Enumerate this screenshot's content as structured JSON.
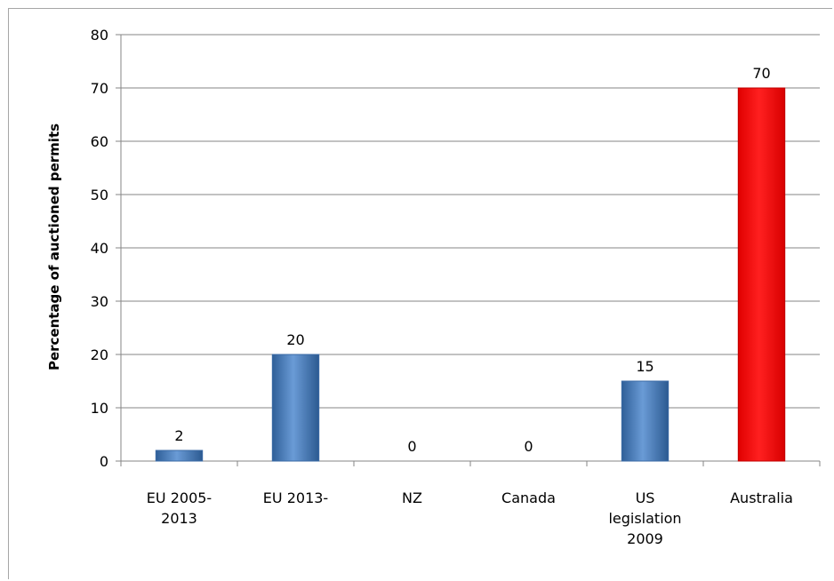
{
  "chart_data": {
    "type": "bar",
    "categories": [
      "EU 2005-\n2013",
      "EU 2013-",
      "NZ",
      "Canada",
      "US\nlegislation\n2009",
      "Australia"
    ],
    "values": [
      2,
      20,
      0,
      0,
      15,
      70
    ],
    "data_labels": [
      "2",
      "20",
      "0",
      "0",
      "15",
      "70"
    ],
    "bar_colors": [
      "#4f81bd",
      "#4f81bd",
      "#4f81bd",
      "#4f81bd",
      "#4f81bd",
      "#ff0000"
    ],
    "title": "",
    "xlabel": "",
    "ylabel": "Percentage of auctioned permits",
    "ylim": [
      0,
      80
    ],
    "yticks": [
      0,
      10,
      20,
      30,
      40,
      50,
      60,
      70,
      80
    ],
    "grid": true,
    "legend": "none"
  }
}
